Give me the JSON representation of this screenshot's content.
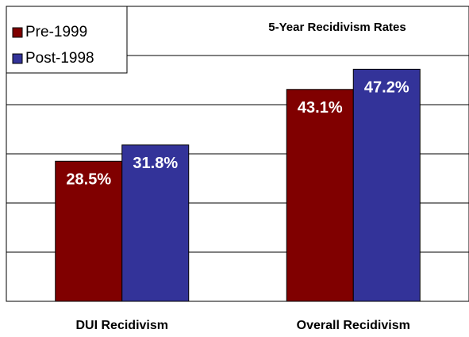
{
  "chart_data": {
    "type": "bar",
    "title": "5-Year Recidivism Rates",
    "categories": [
      "DUI Recidivism",
      "Overall Recidivism"
    ],
    "series": [
      {
        "name": "Pre-1999",
        "color": "#800000",
        "values": [
          28.5,
          43.1
        ],
        "value_labels": [
          "28.5%",
          "43.1%"
        ]
      },
      {
        "name": "Post-1998",
        "color": "#333399",
        "values": [
          31.8,
          47.2
        ],
        "value_labels": [
          "31.8%",
          "47.2%"
        ]
      }
    ],
    "ylim": [
      0,
      60
    ],
    "yticks": [
      0,
      10,
      20,
      30,
      40,
      50,
      60
    ],
    "grid": true,
    "legend": "top-left"
  }
}
